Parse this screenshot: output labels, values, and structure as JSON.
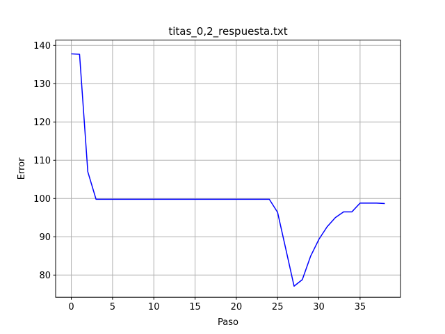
{
  "chart_data": {
    "type": "line",
    "title": "titas_0,2_respuesta.txt",
    "xlabel": "Paso",
    "ylabel": "Error",
    "xlim": [
      -1.9,
      39.9
    ],
    "ylim": [
      74.2,
      141.4
    ],
    "xticks": [
      0,
      5,
      10,
      15,
      20,
      25,
      30,
      35
    ],
    "yticks": [
      80,
      90,
      100,
      110,
      120,
      130,
      140
    ],
    "grid": true,
    "series": [
      {
        "color": "#0000ff",
        "x": [
          0,
          1,
          2,
          3,
          4,
          5,
          6,
          7,
          8,
          9,
          10,
          11,
          12,
          13,
          14,
          15,
          16,
          17,
          18,
          19,
          20,
          21,
          22,
          23,
          24,
          25,
          26,
          27,
          28,
          29,
          30,
          31,
          32,
          33,
          34,
          35,
          36,
          37,
          38
        ],
        "values": [
          137.8,
          137.7,
          107.0,
          99.8,
          99.8,
          99.8,
          99.8,
          99.8,
          99.8,
          99.8,
          99.8,
          99.8,
          99.8,
          99.8,
          99.8,
          99.8,
          99.8,
          99.8,
          99.8,
          99.8,
          99.8,
          99.8,
          99.8,
          99.8,
          99.8,
          96.4,
          86.8,
          77.1,
          78.8,
          84.9,
          89.3,
          92.6,
          95.0,
          96.5,
          96.5,
          98.8,
          98.8,
          98.8,
          98.7
        ]
      }
    ]
  }
}
